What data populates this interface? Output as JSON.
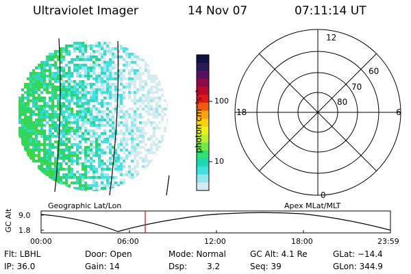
{
  "header": {
    "title": "Ultraviolet Imager",
    "date": "14 Nov 07",
    "time": "07:11:14 UT"
  },
  "colorbar": {
    "unit_label": "photon cm⁻²s⁻¹",
    "ticks": [
      "100",
      "10"
    ],
    "colors": [
      "#101040",
      "#2a1858",
      "#5a1060",
      "#8a0a4a",
      "#b80a2a",
      "#e01818",
      "#f05a10",
      "#f8a010",
      "#f8d010",
      "#e8f020",
      "#b8f030",
      "#70e840",
      "#30e070",
      "#20d8b0",
      "#40e0e0",
      "#90e8ee",
      "#d0eef2"
    ]
  },
  "image_panel": {
    "caption": "Geographic Lat/Lon"
  },
  "polar_plot": {
    "caption": "Apex MLat/MLT",
    "mlt_labels": {
      "top": "12",
      "left": "18",
      "right": "6",
      "bottom": "0"
    },
    "lat_labels": [
      "60",
      "70",
      "80"
    ]
  },
  "altitude_plot": {
    "ylabel": "GC Alt",
    "yticks": [
      "9.0",
      "1.8"
    ],
    "xticks": [
      "00:00",
      "06:00",
      "12:00",
      "18:00",
      "23:59"
    ],
    "current_time_marker_color": "#e00000"
  },
  "info": {
    "row1": {
      "flt": "Flt: LBHL",
      "door": "Door: Open",
      "mode": "Mode: Normal",
      "gcalt": "GC Alt: 4.1 Re",
      "glat": "GLat: −14.4"
    },
    "row2": {
      "ip": "IP: 36.0",
      "gain": "Gain: 14",
      "dsp": "Dsp:",
      "dsp_val": "3.2",
      "seq": "Seq: 39",
      "glon": "GLon: 344.9"
    }
  }
}
